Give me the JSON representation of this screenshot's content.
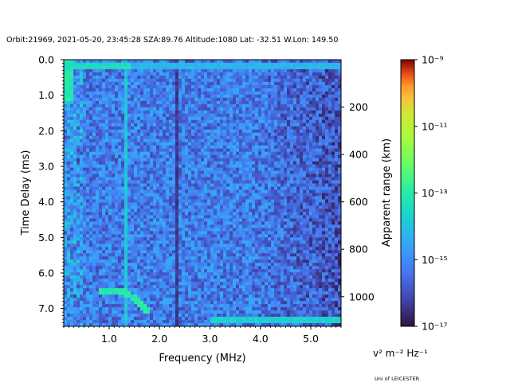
{
  "chart_data": {
    "type": "heatmap",
    "title": "Orbit:21969, 2021-05-20, 23:45:28 SZA:89.76 Altitude:1080 Lat: -32.51 W.Lon: 149.50",
    "xlabel": "Frequency (MHz)",
    "ylabel": "Time Delay (ms)",
    "y2label": "Apparent range (km)",
    "xlim": [
      0.1,
      5.6
    ],
    "ylim": [
      7.5,
      0.0
    ],
    "y2lim": [
      0,
      1125
    ],
    "x_ticks": [
      1.0,
      2.0,
      3.0,
      4.0,
      5.0
    ],
    "x_tick_labels": [
      "1.0",
      "2.0",
      "3.0",
      "4.0",
      "5.0"
    ],
    "y_ticks": [
      0.0,
      1.0,
      2.0,
      3.0,
      4.0,
      5.0,
      6.0,
      7.0
    ],
    "y_tick_labels": [
      "0.0",
      "1.0",
      "2.0",
      "3.0",
      "4.0",
      "5.0",
      "6.0",
      "7.0"
    ],
    "y2_ticks": [
      200,
      400,
      600,
      800,
      1000
    ],
    "y2_tick_labels": [
      "200",
      "400",
      "600",
      "800",
      "1000"
    ],
    "colorbar": {
      "scale": "log",
      "range": [
        1e-17,
        1e-09
      ],
      "tick_exponents": [
        -9,
        -11,
        -13,
        -15,
        -17
      ],
      "tick_labels": [
        "10⁻⁹",
        "10⁻¹¹",
        "10⁻¹³",
        "10⁻¹⁵",
        "10⁻¹⁷"
      ],
      "colormap": "turbo",
      "unit_label": "v² m⁻² Hz⁻¹"
    },
    "features": {
      "bright_delay_ms": 0.15,
      "ground_echo_delay_ms": 7.35,
      "ground_echo_freq_mhz": [
        3.0,
        5.6
      ],
      "trace_freq_mhz": [
        0.8,
        1.8
      ],
      "trace_delay_ms": [
        6.5,
        7.1
      ],
      "vertical_line_freq_mhz": 1.35,
      "dark_band_freq_mhz": 2.35
    }
  },
  "credit": "Uni of LEICESTER"
}
